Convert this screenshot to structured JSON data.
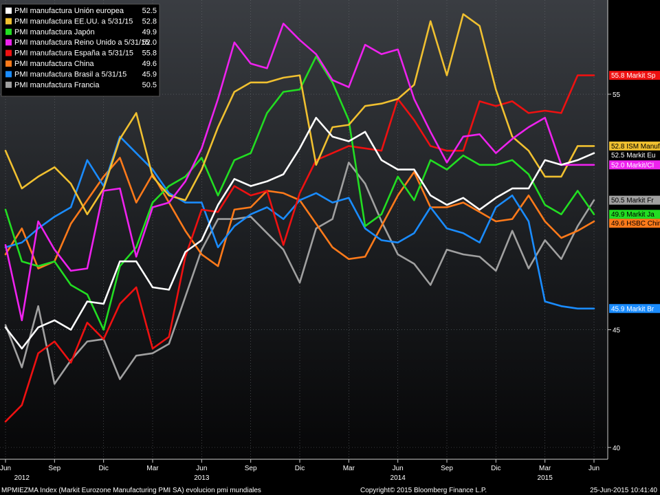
{
  "chart_data": {
    "type": "line",
    "x": [
      "2012-06",
      "2012-07",
      "2012-08",
      "2012-09",
      "2012-10",
      "2012-11",
      "2012-12",
      "2013-01",
      "2013-02",
      "2013-03",
      "2013-04",
      "2013-05",
      "2013-06",
      "2013-07",
      "2013-08",
      "2013-09",
      "2013-10",
      "2013-11",
      "2013-12",
      "2014-01",
      "2014-02",
      "2014-03",
      "2014-04",
      "2014-05",
      "2014-06",
      "2014-07",
      "2014-08",
      "2014-09",
      "2014-10",
      "2014-11",
      "2014-12",
      "2015-01",
      "2015-02",
      "2015-03",
      "2015-04",
      "2015-05",
      "2015-06"
    ],
    "x_ticks": [
      {
        "date": "2012-06",
        "label": "Jun"
      },
      {
        "date": "2012-09",
        "label": "Sep"
      },
      {
        "date": "2012-12",
        "label": "Dic"
      },
      {
        "date": "2013-03",
        "label": "Mar"
      },
      {
        "date": "2013-06",
        "label": "Jun"
      },
      {
        "date": "2013-09",
        "label": "Sep"
      },
      {
        "date": "2013-12",
        "label": "Dic"
      },
      {
        "date": "2014-03",
        "label": "Mar"
      },
      {
        "date": "2014-06",
        "label": "Jun"
      },
      {
        "date": "2014-09",
        "label": "Sep"
      },
      {
        "date": "2014-12",
        "label": "Dic"
      },
      {
        "date": "2015-03",
        "label": "Mar"
      },
      {
        "date": "2015-06",
        "label": "Jun"
      }
    ],
    "years": [
      {
        "date": "2012-07",
        "label": "2012"
      },
      {
        "date": "2013-06",
        "label": "2013"
      },
      {
        "date": "2014-06",
        "label": "2014"
      },
      {
        "date": "2015-03",
        "label": "2015"
      }
    ],
    "y_ticks": [
      40,
      45,
      55
    ],
    "ylim": [
      39.5,
      59
    ],
    "grid": true,
    "legend_position": "top-left",
    "series": [
      {
        "name": "PMI manufactura Unión europea",
        "legend_value": "52.5",
        "color": "#ffffff",
        "tag": "52.5 Markit Eu",
        "tag_bg": "#000000",
        "tag_fg": "#ffffff",
        "values": [
          45.1,
          44.2,
          45.1,
          45.4,
          45.0,
          46.2,
          46.1,
          47.9,
          47.9,
          46.8,
          46.7,
          48.3,
          48.8,
          50.3,
          51.4,
          51.1,
          51.3,
          51.6,
          52.7,
          54.0,
          53.2,
          53.0,
          53.4,
          52.2,
          51.8,
          51.8,
          50.7,
          50.3,
          50.6,
          50.1,
          50.6,
          51.0,
          51.0,
          52.2,
          52.0,
          52.2,
          52.5
        ]
      },
      {
        "name": "PMI manufactura EE.UU. a 5/31/15",
        "legend_value": "52.8",
        "color": "#f0c030",
        "tag": "52.8 ISM Manuf",
        "tag_bg": "#f0c030",
        "tag_fg": "#000000",
        "values": [
          52.6,
          51.0,
          51.5,
          51.9,
          51.2,
          49.9,
          51.0,
          53.1,
          54.2,
          51.5,
          50.7,
          50.5,
          51.8,
          53.6,
          55.1,
          55.5,
          55.5,
          55.7,
          55.8,
          52.0,
          53.6,
          53.7,
          54.5,
          54.6,
          54.8,
          55.4,
          58.1,
          55.8,
          58.4,
          57.9,
          55.2,
          53.2,
          52.6,
          51.5,
          51.5,
          52.8,
          52.8
        ]
      },
      {
        "name": "PMI manufactura Japón",
        "legend_value": "49.9",
        "color": "#22dd22",
        "tag": "49.9 Markit Ja",
        "tag_bg": "#22dd22",
        "tag_fg": "#000000",
        "values": [
          50.1,
          47.9,
          47.7,
          47.9,
          46.9,
          46.5,
          45.0,
          47.7,
          48.5,
          50.4,
          51.1,
          51.5,
          52.3,
          50.7,
          52.2,
          52.5,
          54.2,
          55.1,
          55.2,
          56.6,
          55.5,
          53.9,
          49.4,
          49.9,
          51.5,
          50.5,
          52.2,
          51.8,
          52.4,
          52.0,
          52.0,
          52.2,
          51.6,
          50.3,
          49.9,
          50.9,
          49.9
        ]
      },
      {
        "name": "PMI manufactura Reino Unido a 5/31/15",
        "legend_value": "52.0",
        "color": "#ee22ee",
        "tag": "52.0 Markit/CI",
        "tag_bg": "#ee22ee",
        "tag_fg": "#ffffff",
        "values": [
          48.6,
          45.4,
          49.6,
          48.4,
          47.5,
          47.6,
          50.9,
          51.0,
          48.1,
          50.2,
          50.4,
          51.3,
          52.7,
          54.8,
          57.2,
          56.3,
          56.1,
          58.0,
          57.3,
          56.7,
          55.6,
          55.3,
          57.1,
          56.7,
          56.9,
          54.8,
          53.4,
          52.1,
          53.2,
          53.3,
          52.5,
          53.1,
          53.6,
          54.0,
          52.0,
          52.0,
          52.0
        ]
      },
      {
        "name": "PMI manufactura España a 5/31/15",
        "legend_value": "55.8",
        "color": "#ee1111",
        "tag": "55.8 Markit Sp",
        "tag_bg": "#ee1111",
        "tag_fg": "#ffffff",
        "values": [
          41.1,
          41.8,
          44.0,
          44.5,
          43.6,
          45.3,
          44.6,
          46.1,
          46.8,
          44.2,
          44.7,
          48.1,
          50.1,
          50.0,
          51.1,
          50.7,
          50.9,
          48.6,
          50.8,
          52.2,
          52.5,
          52.8,
          52.7,
          52.6,
          54.8,
          53.9,
          52.8,
          52.6,
          52.6,
          54.7,
          54.5,
          54.7,
          54.2,
          54.3,
          54.2,
          55.8,
          55.8
        ]
      },
      {
        "name": "PMI manufactura China",
        "legend_value": "49.6",
        "color": "#ff7a1a",
        "tag": "49.6 HSBC Chin",
        "tag_bg": "#ff7a1a",
        "tag_fg": "#000000",
        "values": [
          48.2,
          49.3,
          47.6,
          47.9,
          49.5,
          50.5,
          51.5,
          52.3,
          50.4,
          51.6,
          50.4,
          49.2,
          48.2,
          47.7,
          50.1,
          50.2,
          50.9,
          50.8,
          50.5,
          49.5,
          48.5,
          48.0,
          48.1,
          49.4,
          50.7,
          51.7,
          50.2,
          50.2,
          50.4,
          50.0,
          49.6,
          49.7,
          50.7,
          49.6,
          48.9,
          49.2,
          49.6
        ]
      },
      {
        "name": "PMI manufactura Brasil a 5/31/15",
        "legend_value": "45.9",
        "color": "#1a8cff",
        "tag": "45.9 Markit Br",
        "tag_bg": "#1a8cff",
        "tag_fg": "#ffffff",
        "values": [
          48.5,
          48.7,
          49.3,
          49.8,
          50.2,
          52.2,
          51.1,
          53.2,
          52.5,
          51.8,
          50.8,
          50.4,
          50.4,
          48.5,
          49.4,
          49.9,
          50.2,
          49.7,
          50.5,
          50.8,
          50.4,
          50.6,
          49.3,
          48.8,
          48.7,
          49.1,
          50.2,
          49.3,
          49.1,
          48.7,
          50.2,
          50.7,
          49.6,
          46.2,
          46.0,
          45.9,
          45.9
        ]
      },
      {
        "name": "PMI manufactura Francia",
        "legend_value": "50.5",
        "color": "#a0a0a0",
        "tag": "50.5 Markit Fr",
        "tag_bg": "#a0a0a0",
        "tag_fg": "#000000",
        "values": [
          45.2,
          43.4,
          46.0,
          42.7,
          43.7,
          44.5,
          44.6,
          42.9,
          43.9,
          44.0,
          44.4,
          46.4,
          48.4,
          49.7,
          49.7,
          49.8,
          49.1,
          48.4,
          47.0,
          49.3,
          49.7,
          52.1,
          51.2,
          49.6,
          48.2,
          47.8,
          46.9,
          48.4,
          48.2,
          48.1,
          47.5,
          49.2,
          47.6,
          48.8,
          48.0,
          49.4,
          50.5
        ]
      }
    ],
    "footer_left": "MPMIEZMA Index (Markit Eurozone Manufacturing PMI SA) evolucion pmi mundiales",
    "footer_center": "Copyright© 2015 Bloomberg Finance L.P.",
    "footer_right": "25-Jun-2015 10:41:40"
  }
}
